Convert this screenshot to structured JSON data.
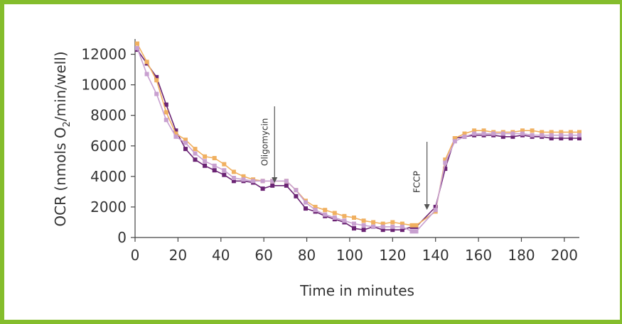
{
  "chart_data": {
    "type": "line",
    "xlabel": "Time in minutes",
    "ylabel_main": "OCR (nmols O",
    "ylabel_sub": "2",
    "ylabel_end": "/min/well)",
    "xlim": [
      0,
      207
    ],
    "ylim": [
      0,
      13000
    ],
    "x_ticks": [
      0,
      20,
      40,
      60,
      80,
      100,
      120,
      140,
      160,
      180,
      200
    ],
    "y_ticks": [
      0,
      2000,
      4000,
      6000,
      8000,
      10000,
      12000
    ],
    "grid": false,
    "annotations": [
      {
        "text": "Oligomycin",
        "x": 65
      },
      {
        "text": "FCCP",
        "x": 136
      }
    ],
    "x": [
      1,
      5.5,
      10,
      14.5,
      19,
      23.5,
      28,
      32.5,
      37,
      41.5,
      46,
      50.5,
      55,
      59.5,
      64,
      70.5,
      75,
      79.5,
      84,
      88.5,
      93,
      97.5,
      102,
      106.5,
      111,
      115.5,
      120,
      124.5,
      129,
      131,
      140,
      144.5,
      149,
      153.5,
      158,
      162.5,
      167,
      171.5,
      176,
      180.5,
      185,
      189.5,
      194,
      198.5,
      203,
      207
    ],
    "series": [
      {
        "color": "#6b2474",
        "values": [
          12300,
          11400,
          10500,
          8700,
          7000,
          5800,
          5100,
          4700,
          4400,
          4100,
          3700,
          3700,
          3600,
          3200,
          3400,
          3400,
          2700,
          1900,
          1700,
          1400,
          1200,
          1000,
          600,
          500,
          700,
          500,
          500,
          500,
          700,
          700,
          2000,
          4500,
          6500,
          6600,
          6700,
          6700,
          6700,
          6600,
          6600,
          6700,
          6600,
          6600,
          6500,
          6500,
          6500,
          6500
        ]
      },
      {
        "color": "#f0b060",
        "values": [
          12700,
          11500,
          10300,
          8200,
          6800,
          6400,
          5800,
          5300,
          5200,
          4800,
          4300,
          4000,
          3800,
          3700,
          3700,
          3700,
          3100,
          2400,
          2000,
          1800,
          1600,
          1400,
          1300,
          1100,
          1000,
          900,
          1000,
          900,
          800,
          800,
          1700,
          5100,
          6500,
          6800,
          7000,
          7000,
          6900,
          6900,
          6900,
          7000,
          7000,
          6900,
          6900,
          6900,
          6900,
          6900
        ]
      },
      {
        "color": "#c8a0d0",
        "values": [
          12400,
          10700,
          9400,
          7700,
          6600,
          6200,
          5500,
          5000,
          4700,
          4400,
          3900,
          3800,
          3700,
          3700,
          3700,
          3700,
          3100,
          2300,
          1800,
          1500,
          1300,
          1100,
          900,
          800,
          700,
          700,
          700,
          700,
          400,
          400,
          1800,
          4900,
          6300,
          6600,
          6800,
          6800,
          6800,
          6800,
          6800,
          6800,
          6700,
          6700,
          6700,
          6700,
          6700,
          6700
        ]
      }
    ]
  }
}
